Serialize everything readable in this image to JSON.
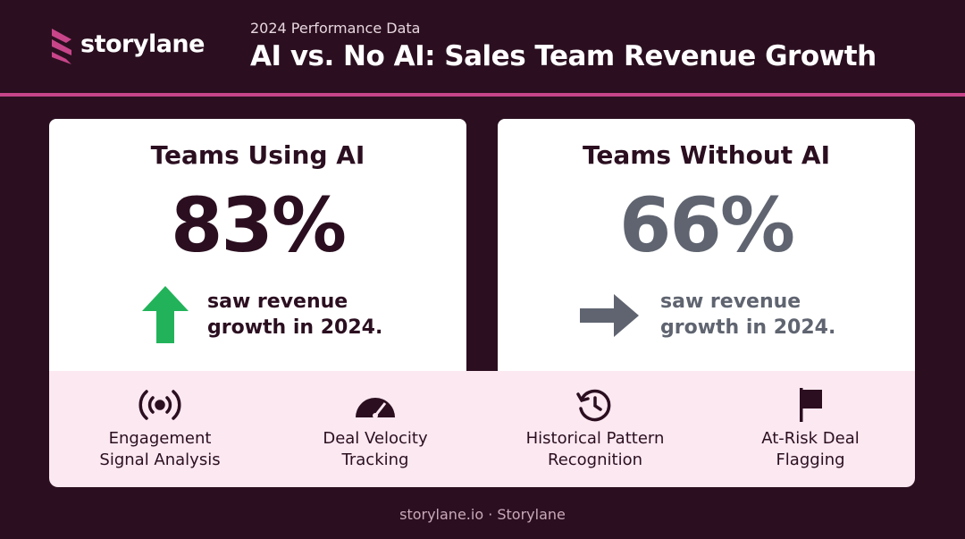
{
  "header": {
    "brand": "storylane",
    "subtitle": "2024 Performance Data",
    "title": "AI vs. No AI: Sales Team Revenue Growth"
  },
  "cards": [
    {
      "title": "Teams Using AI",
      "stat": "83%",
      "caption": "saw revenue growth in 2024."
    },
    {
      "title": "Teams Without AI",
      "stat": "66%",
      "caption": "saw revenue growth in 2024."
    }
  ],
  "features": [
    {
      "lines": [
        "Engagement",
        "Signal Analysis"
      ]
    },
    {
      "lines": [
        "Deal Velocity",
        "Tracking"
      ]
    },
    {
      "lines": [
        "Historical Pattern",
        "Recognition"
      ]
    },
    {
      "lines": [
        "At-Risk Deal",
        "Flagging"
      ]
    }
  ],
  "footer": "storylane.io · Storylane"
}
